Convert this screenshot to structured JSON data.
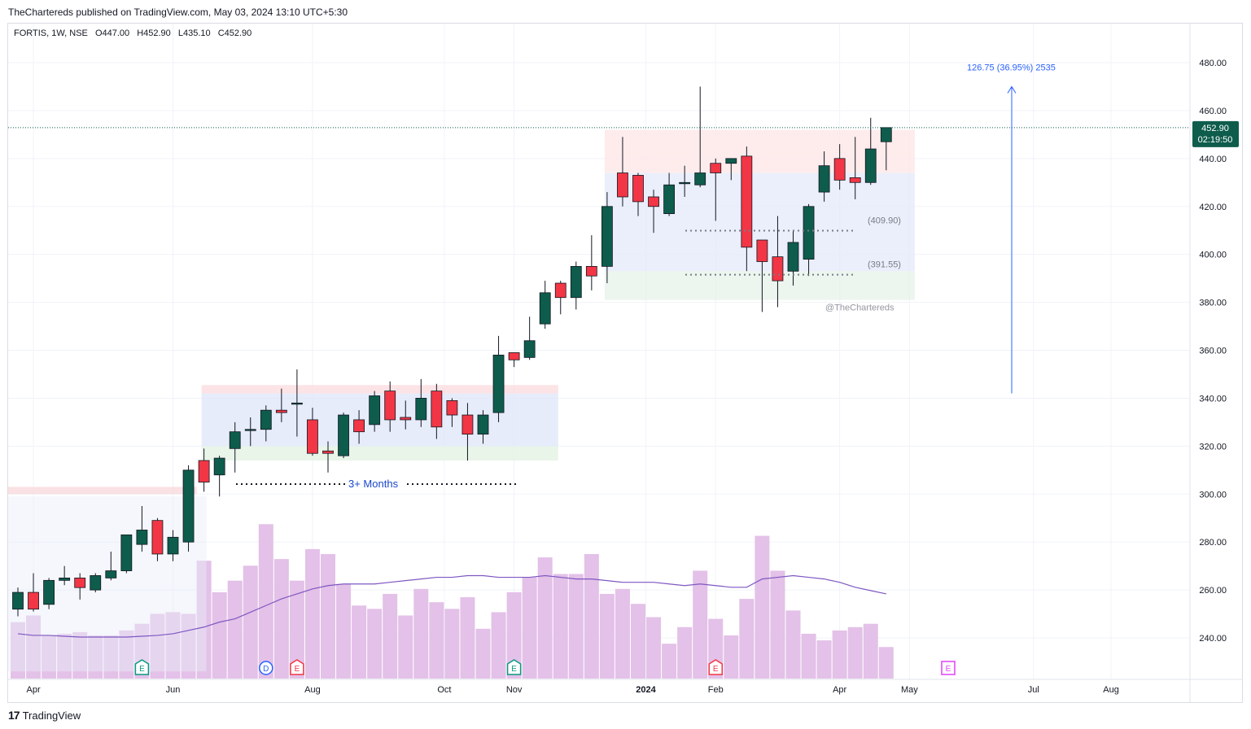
{
  "header": {
    "publisher_line": "TheChartereds published on TradingView.com, May 03, 2024 13:10 UTC+5:30"
  },
  "legend": {
    "symbol": "FORTIS, 1W, NSE",
    "open": "O447.00",
    "high": "H452.90",
    "low": "L435.10",
    "close": "C452.90"
  },
  "price_tag": {
    "price": "452.90",
    "timer": "02:19:50"
  },
  "annotations": {
    "measure_label": "126.75 (36.95%) 2535",
    "level_upper": "(409.90)",
    "level_lower": "(391.55)",
    "watermark": "@TheChartereds",
    "consolidation_label": "3+ Months"
  },
  "footer": {
    "logo": "17",
    "brand": "TradingView"
  },
  "colors": {
    "up": "#0e5c4c",
    "down": "#f23645",
    "volume": "#e1bee7",
    "ma": "#7e57c2",
    "measure": "#2962ff",
    "last_price": "#0e5c4c"
  },
  "chart_data": {
    "type": "candlestick",
    "title": "FORTIS, 1W, NSE",
    "ylim": [
      220,
      490
    ],
    "y_ticks": [
      "480.00",
      "460.00",
      "440.00",
      "420.00",
      "400.00",
      "380.00",
      "360.00",
      "340.00",
      "320.00",
      "300.00",
      "280.00",
      "260.00",
      "240.00"
    ],
    "x_ticks": [
      "Apr",
      "Jun",
      "Aug",
      "Oct",
      "Nov",
      "2024",
      "Feb",
      "Apr",
      "May",
      "Jul",
      "Aug"
    ],
    "candles": [
      {
        "o": 252,
        "h": 261,
        "l": 249,
        "c": 259
      },
      {
        "o": 259,
        "h": 267,
        "l": 251,
        "c": 252
      },
      {
        "o": 254,
        "h": 265,
        "l": 252,
        "c": 264
      },
      {
        "o": 264,
        "h": 270,
        "l": 262,
        "c": 265
      },
      {
        "o": 265,
        "h": 267,
        "l": 256,
        "c": 261
      },
      {
        "o": 260,
        "h": 267,
        "l": 259,
        "c": 266
      },
      {
        "o": 265,
        "h": 276,
        "l": 264,
        "c": 268
      },
      {
        "o": 268,
        "h": 283,
        "l": 267,
        "c": 283
      },
      {
        "o": 279,
        "h": 295,
        "l": 276,
        "c": 285
      },
      {
        "o": 289,
        "h": 290,
        "l": 272,
        "c": 275
      },
      {
        "o": 275,
        "h": 285,
        "l": 272,
        "c": 282
      },
      {
        "o": 280,
        "h": 312,
        "l": 276,
        "c": 310
      },
      {
        "o": 314,
        "h": 319,
        "l": 301,
        "c": 305
      },
      {
        "o": 308,
        "h": 316,
        "l": 299,
        "c": 315
      },
      {
        "o": 319,
        "h": 330,
        "l": 309,
        "c": 326
      },
      {
        "o": 327,
        "h": 332,
        "l": 320,
        "c": 327
      },
      {
        "o": 327,
        "h": 337,
        "l": 322,
        "c": 335
      },
      {
        "o": 335,
        "h": 344,
        "l": 330,
        "c": 334
      },
      {
        "o": 338,
        "h": 352,
        "l": 324,
        "c": 338
      },
      {
        "o": 331,
        "h": 336,
        "l": 316,
        "c": 317
      },
      {
        "o": 318,
        "h": 322,
        "l": 309,
        "c": 317
      },
      {
        "o": 316,
        "h": 334,
        "l": 315,
        "c": 333
      },
      {
        "o": 331,
        "h": 335,
        "l": 321,
        "c": 326
      },
      {
        "o": 329,
        "h": 343,
        "l": 326,
        "c": 341
      },
      {
        "o": 343,
        "h": 347,
        "l": 326,
        "c": 331
      },
      {
        "o": 332,
        "h": 339,
        "l": 327,
        "c": 331
      },
      {
        "o": 331,
        "h": 348,
        "l": 328,
        "c": 340
      },
      {
        "o": 343,
        "h": 346,
        "l": 323,
        "c": 328
      },
      {
        "o": 339,
        "h": 340,
        "l": 328,
        "c": 333
      },
      {
        "o": 333,
        "h": 338,
        "l": 314,
        "c": 325
      },
      {
        "o": 325,
        "h": 335,
        "l": 321,
        "c": 333
      },
      {
        "o": 334,
        "h": 366,
        "l": 330,
        "c": 358
      },
      {
        "o": 359,
        "h": 359,
        "l": 353,
        "c": 356
      },
      {
        "o": 357,
        "h": 374,
        "l": 356,
        "c": 364
      },
      {
        "o": 371,
        "h": 389,
        "l": 369,
        "c": 384
      },
      {
        "o": 388,
        "h": 389,
        "l": 375,
        "c": 382
      },
      {
        "o": 382,
        "h": 397,
        "l": 377,
        "c": 395
      },
      {
        "o": 395,
        "h": 408,
        "l": 385,
        "c": 391
      },
      {
        "o": 395,
        "h": 426,
        "l": 388,
        "c": 420
      },
      {
        "o": 434,
        "h": 449,
        "l": 420,
        "c": 424
      },
      {
        "o": 433,
        "h": 434,
        "l": 416,
        "c": 422
      },
      {
        "o": 424,
        "h": 427,
        "l": 409,
        "c": 420
      },
      {
        "o": 417,
        "h": 434,
        "l": 416,
        "c": 429
      },
      {
        "o": 430,
        "h": 437,
        "l": 424,
        "c": 430
      },
      {
        "o": 429,
        "h": 470,
        "l": 428,
        "c": 434
      },
      {
        "o": 438,
        "h": 440,
        "l": 414,
        "c": 434
      },
      {
        "o": 438,
        "h": 440,
        "l": 431,
        "c": 440
      },
      {
        "o": 441,
        "h": 445,
        "l": 393,
        "c": 403
      },
      {
        "o": 406,
        "h": 406,
        "l": 376,
        "c": 397
      },
      {
        "o": 399,
        "h": 416,
        "l": 378,
        "c": 389
      },
      {
        "o": 393,
        "h": 410,
        "l": 387,
        "c": 405
      },
      {
        "o": 398,
        "h": 421,
        "l": 391,
        "c": 420
      },
      {
        "o": 426,
        "h": 443,
        "l": 422,
        "c": 437
      },
      {
        "o": 440,
        "h": 446,
        "l": 427,
        "c": 431
      },
      {
        "o": 432,
        "h": 449,
        "l": 423,
        "c": 430
      },
      {
        "o": 430,
        "h": 457,
        "l": 429,
        "c": 444
      },
      {
        "o": 447,
        "h": 452.9,
        "l": 435.1,
        "c": 452.9
      }
    ],
    "volume_relative": [
      0.34,
      0.38,
      0.26,
      0.27,
      0.28,
      0.26,
      0.26,
      0.29,
      0.33,
      0.39,
      0.4,
      0.39,
      0.71,
      0.52,
      0.59,
      0.68,
      0.93,
      0.72,
      0.59,
      0.78,
      0.75,
      0.57,
      0.44,
      0.42,
      0.51,
      0.38,
      0.54,
      0.46,
      0.42,
      0.49,
      0.3,
      0.4,
      0.52,
      0.61,
      0.73,
      0.63,
      0.63,
      0.75,
      0.51,
      0.54,
      0.45,
      0.37,
      0.21,
      0.31,
      0.65,
      0.36,
      0.26,
      0.48,
      0.86,
      0.65,
      0.41,
      0.27,
      0.23,
      0.29,
      0.31,
      0.33,
      0.19
    ],
    "volume_ma_relative": [
      0.27,
      0.26,
      0.26,
      0.255,
      0.25,
      0.25,
      0.25,
      0.25,
      0.255,
      0.26,
      0.27,
      0.29,
      0.31,
      0.34,
      0.36,
      0.4,
      0.44,
      0.48,
      0.51,
      0.54,
      0.56,
      0.57,
      0.57,
      0.57,
      0.58,
      0.59,
      0.6,
      0.61,
      0.61,
      0.62,
      0.62,
      0.61,
      0.61,
      0.61,
      0.62,
      0.61,
      0.6,
      0.6,
      0.59,
      0.58,
      0.58,
      0.58,
      0.57,
      0.56,
      0.57,
      0.56,
      0.55,
      0.55,
      0.6,
      0.61,
      0.62,
      0.61,
      0.6,
      0.58,
      0.55,
      0.53,
      0.51
    ],
    "zones": [
      {
        "name": "resistance-2023",
        "top": 303,
        "bottom": 300,
        "from_index": -1,
        "to_index": 12
      },
      {
        "name": "range-2023-top",
        "top": 345.5,
        "bottom": 342,
        "from_index": 12,
        "to_index": 35
      },
      {
        "name": "range-2023-body",
        "top": 342,
        "bottom": 320,
        "from_index": 12,
        "to_index": 35
      },
      {
        "name": "range-2023-bottom",
        "top": 320,
        "bottom": 314,
        "from_index": 12,
        "to_index": 35
      },
      {
        "name": "range-2024-top",
        "top": 452,
        "bottom": 434,
        "from_index": 38,
        "to_index": 58
      },
      {
        "name": "range-2024-body",
        "top": 434,
        "bottom": 393,
        "from_index": 38,
        "to_index": 58
      },
      {
        "name": "range-2024-bottom",
        "top": 393,
        "bottom": 381,
        "from_index": 38,
        "to_index": 58
      },
      {
        "name": "base-2023",
        "top": 299,
        "bottom": 226,
        "from_index": -1,
        "to_index": 13
      }
    ],
    "levels": [
      {
        "label": "(409.90)",
        "value": 409.9
      },
      {
        "label": "(391.55)",
        "value": 391.55
      }
    ],
    "measure": {
      "from": 342,
      "to": 470
    },
    "last_price": 452.9,
    "events": [
      {
        "letter": "E",
        "index": 8,
        "style": "earnings-past"
      },
      {
        "letter": "D",
        "index": 16,
        "style": "dividend"
      },
      {
        "letter": "E",
        "index": 18,
        "style": "earnings-miss"
      },
      {
        "letter": "E",
        "index": 32,
        "style": "earnings-past"
      },
      {
        "letter": "E",
        "index": 45,
        "style": "earnings-miss"
      },
      {
        "letter": "E",
        "index": 60,
        "style": "earnings-future"
      }
    ]
  }
}
